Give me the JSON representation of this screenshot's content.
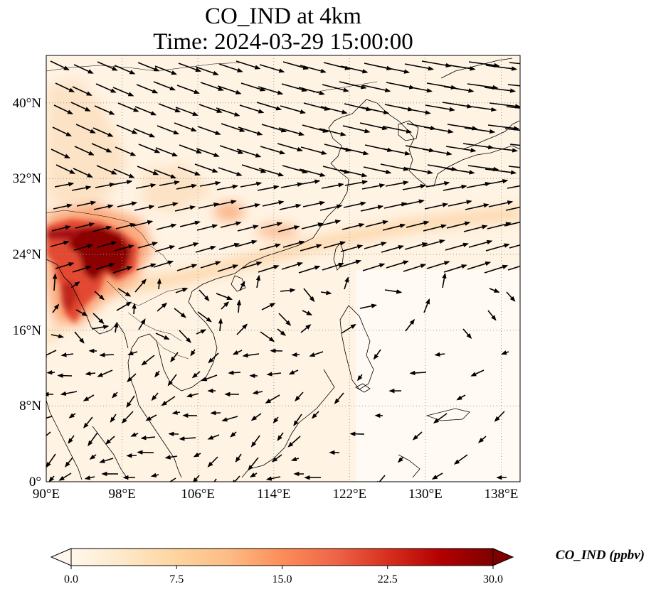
{
  "map": {
    "title_line1": "CO_IND at 4km",
    "title_line2": "Time: 2024-03-29 15:00:00",
    "lon_ticks": [
      "90°E",
      "98°E",
      "106°E",
      "114°E",
      "122°E",
      "130°E",
      "138°E"
    ],
    "lat_ticks": [
      "0°",
      "8°N",
      "16°N",
      "24°N",
      "32°N",
      "40°N"
    ],
    "lon_range": [
      90,
      140
    ],
    "lat_range": [
      0,
      45
    ],
    "variable": "CO_IND",
    "units": "ppbv"
  },
  "colorbar": {
    "label": "CO_IND (ppbv)",
    "ticks": [
      "0.0",
      "7.5",
      "15.0",
      "22.5",
      "30.0"
    ],
    "range": [
      0,
      30
    ],
    "colormap": "OrRd",
    "colors": [
      "#fff7ec",
      "#fee8c8",
      "#fdd49e",
      "#fdbb84",
      "#fc8d59",
      "#ef6548",
      "#d7301f",
      "#b30000",
      "#7f0000"
    ],
    "extend": "both"
  }
}
